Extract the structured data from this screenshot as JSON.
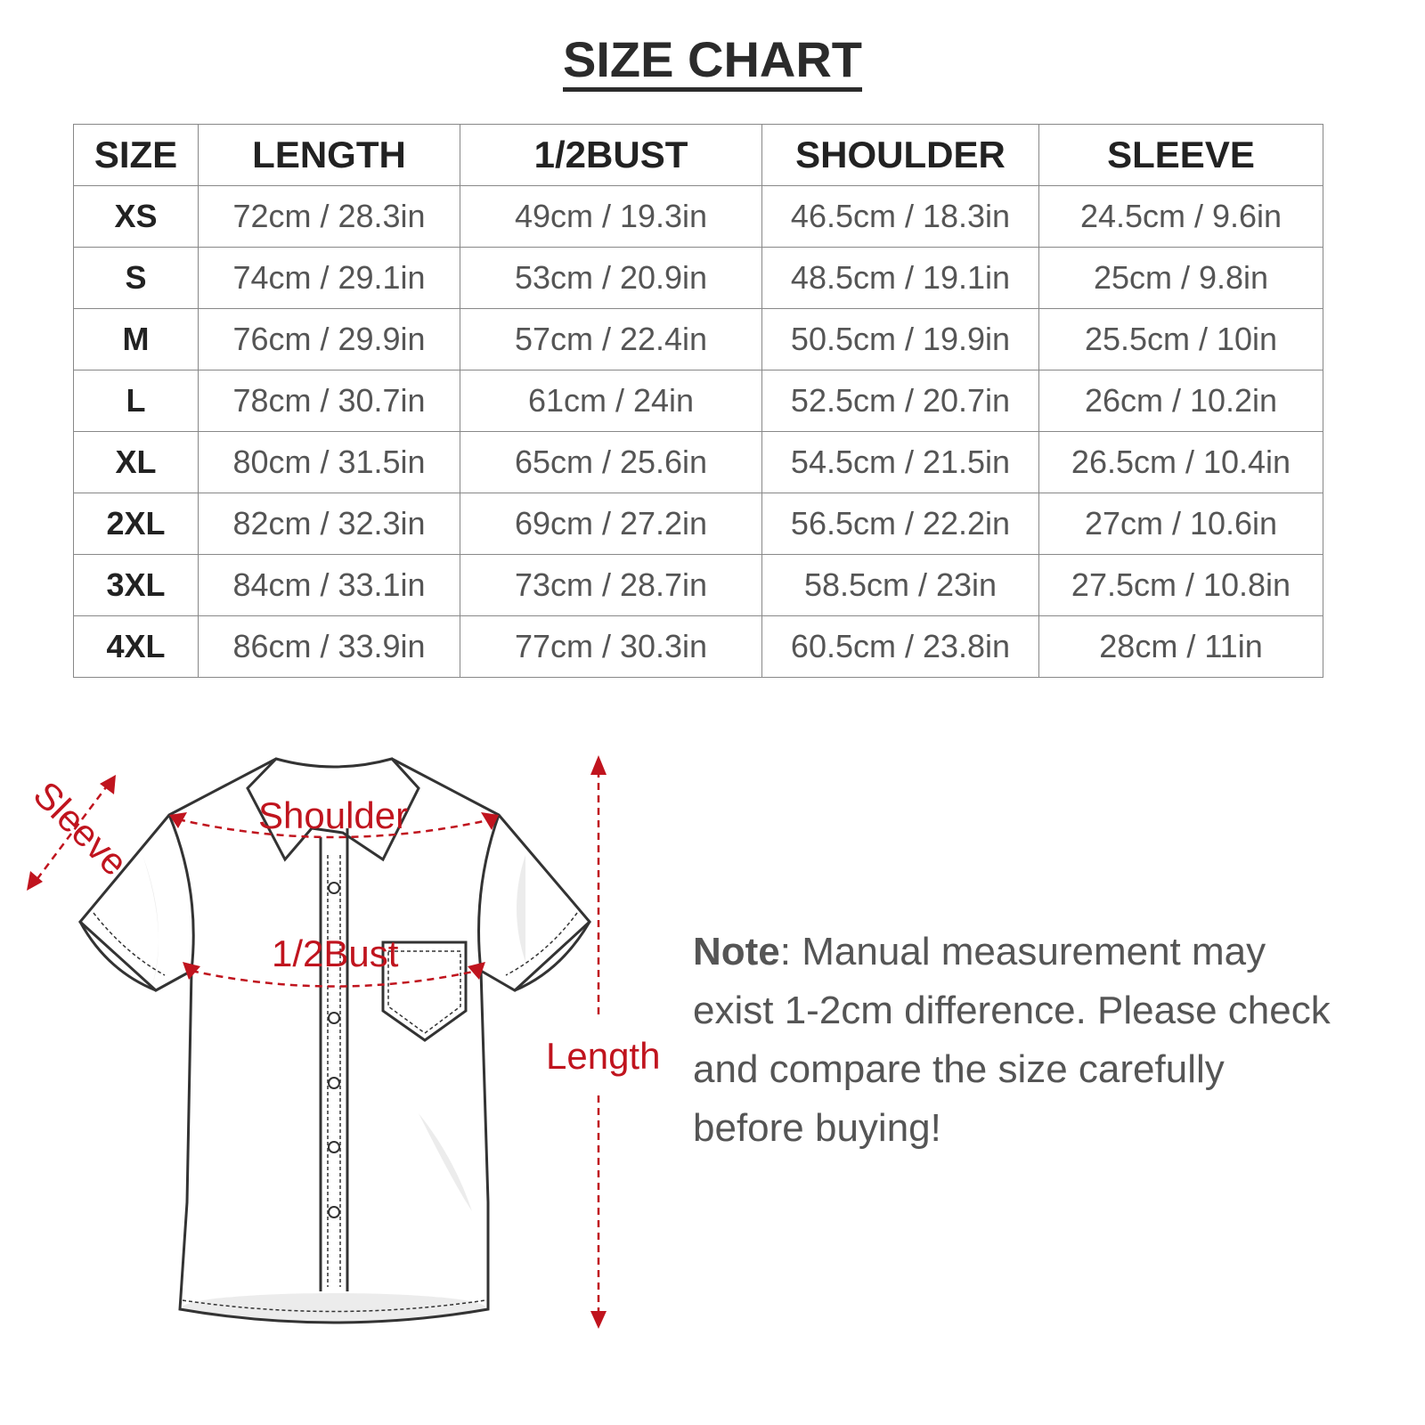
{
  "title": "SIZE CHART",
  "table": {
    "headers": [
      "SIZE",
      "LENGTH",
      "1/2BUST",
      "SHOULDER",
      "SLEEVE"
    ],
    "rows": [
      [
        "XS",
        "72cm / 28.3in",
        "49cm / 19.3in",
        "46.5cm / 18.3in",
        "24.5cm / 9.6in"
      ],
      [
        "S",
        "74cm / 29.1in",
        "53cm / 20.9in",
        "48.5cm / 19.1in",
        "25cm / 9.8in"
      ],
      [
        "M",
        "76cm / 29.9in",
        "57cm / 22.4in",
        "50.5cm / 19.9in",
        "25.5cm / 10in"
      ],
      [
        "L",
        "78cm / 30.7in",
        "61cm / 24in",
        "52.5cm / 20.7in",
        "26cm / 10.2in"
      ],
      [
        "XL",
        "80cm / 31.5in",
        "65cm / 25.6in",
        "54.5cm / 21.5in",
        "26.5cm / 10.4in"
      ],
      [
        "2XL",
        "82cm / 32.3in",
        "69cm / 27.2in",
        "56.5cm / 22.2in",
        "27cm / 10.6in"
      ],
      [
        "3XL",
        "84cm / 33.1in",
        "73cm / 28.7in",
        "58.5cm / 23in",
        "27.5cm / 10.8in"
      ],
      [
        "4XL",
        "86cm / 33.9in",
        "77cm / 30.3in",
        "60.5cm / 23.8in",
        "28cm / 11in"
      ]
    ]
  },
  "diagram": {
    "labels": {
      "sleeve": "Sleeve",
      "shoulder": "Shoulder",
      "bust": "1/2Bust",
      "length": "Length"
    },
    "accent_color": "#c0141e"
  },
  "note": {
    "label": "Note",
    "text": ": Manual measurement may exist 1-2cm difference. Please check and compare the size carefully before buying!"
  }
}
